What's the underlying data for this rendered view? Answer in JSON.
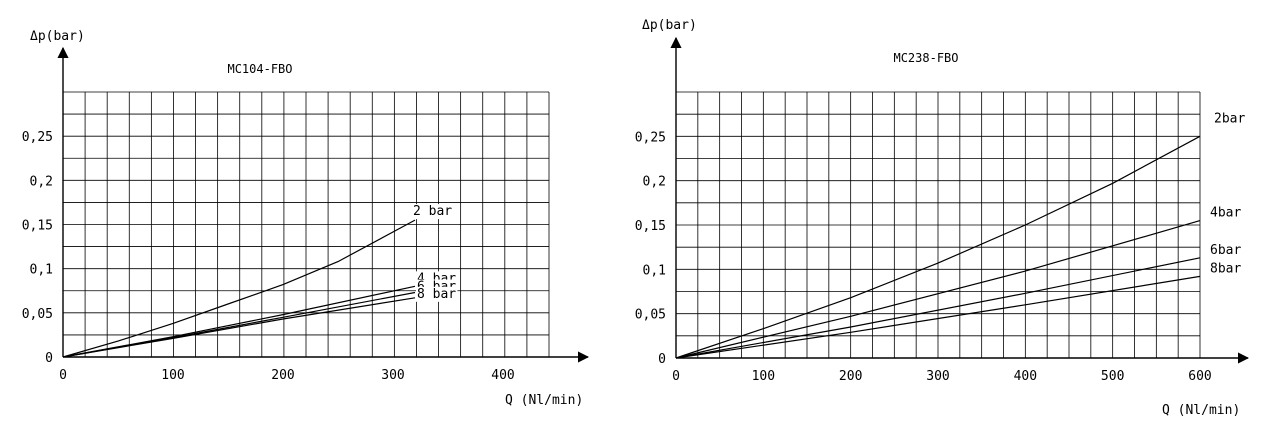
{
  "chart_data": [
    {
      "type": "line",
      "title": "MC104-FBO",
      "ylabel": "Δp(bar)",
      "xlabel": "Q (Nl/min)",
      "xlim": [
        0,
        440
      ],
      "ylim": [
        0,
        0.3
      ],
      "grid": true,
      "x_ticks": [
        "0",
        "100",
        "200",
        "300",
        "400"
      ],
      "y_ticks": [
        "0",
        "0,05",
        "0,1",
        "0,15",
        "0,2",
        "0,25"
      ],
      "series": [
        {
          "name": "2 bar",
          "x": [
            0,
            50,
            100,
            150,
            200,
            250,
            320
          ],
          "y": [
            0,
            0.018,
            0.038,
            0.06,
            0.082,
            0.108,
            0.155
          ]
        },
        {
          "name": "4 bar",
          "x": [
            0,
            100,
            200,
            320
          ],
          "y": [
            0,
            0.023,
            0.048,
            0.08
          ]
        },
        {
          "name": "6 bar",
          "x": [
            0,
            100,
            200,
            320
          ],
          "y": [
            0,
            0.022,
            0.045,
            0.073
          ]
        },
        {
          "name": "8 bar",
          "x": [
            0,
            100,
            200,
            320
          ],
          "y": [
            0,
            0.021,
            0.043,
            0.067
          ]
        }
      ]
    },
    {
      "type": "line",
      "title": "MC238-FBO",
      "ylabel": "Δp(bar)",
      "xlabel": "Q (Nl/min)",
      "xlim": [
        0,
        600
      ],
      "ylim": [
        0,
        0.3
      ],
      "grid": true,
      "x_ticks": [
        "0",
        "100",
        "200",
        "300",
        "400",
        "500",
        "600"
      ],
      "y_ticks": [
        "0",
        "0,05",
        "0,1",
        "0,15",
        "0,2",
        "0,25"
      ],
      "series": [
        {
          "name": "2bar",
          "x": [
            0,
            100,
            200,
            300,
            400,
            500,
            600
          ],
          "y": [
            0,
            0.033,
            0.068,
            0.107,
            0.15,
            0.197,
            0.25
          ]
        },
        {
          "name": "4bar",
          "x": [
            0,
            200,
            400,
            600
          ],
          "y": [
            0,
            0.047,
            0.098,
            0.155
          ]
        },
        {
          "name": "6bar",
          "x": [
            0,
            200,
            400,
            600
          ],
          "y": [
            0,
            0.035,
            0.073,
            0.113
          ]
        },
        {
          "name": "8bar",
          "x": [
            0,
            200,
            400,
            600
          ],
          "y": [
            0,
            0.029,
            0.06,
            0.092
          ]
        }
      ]
    }
  ]
}
